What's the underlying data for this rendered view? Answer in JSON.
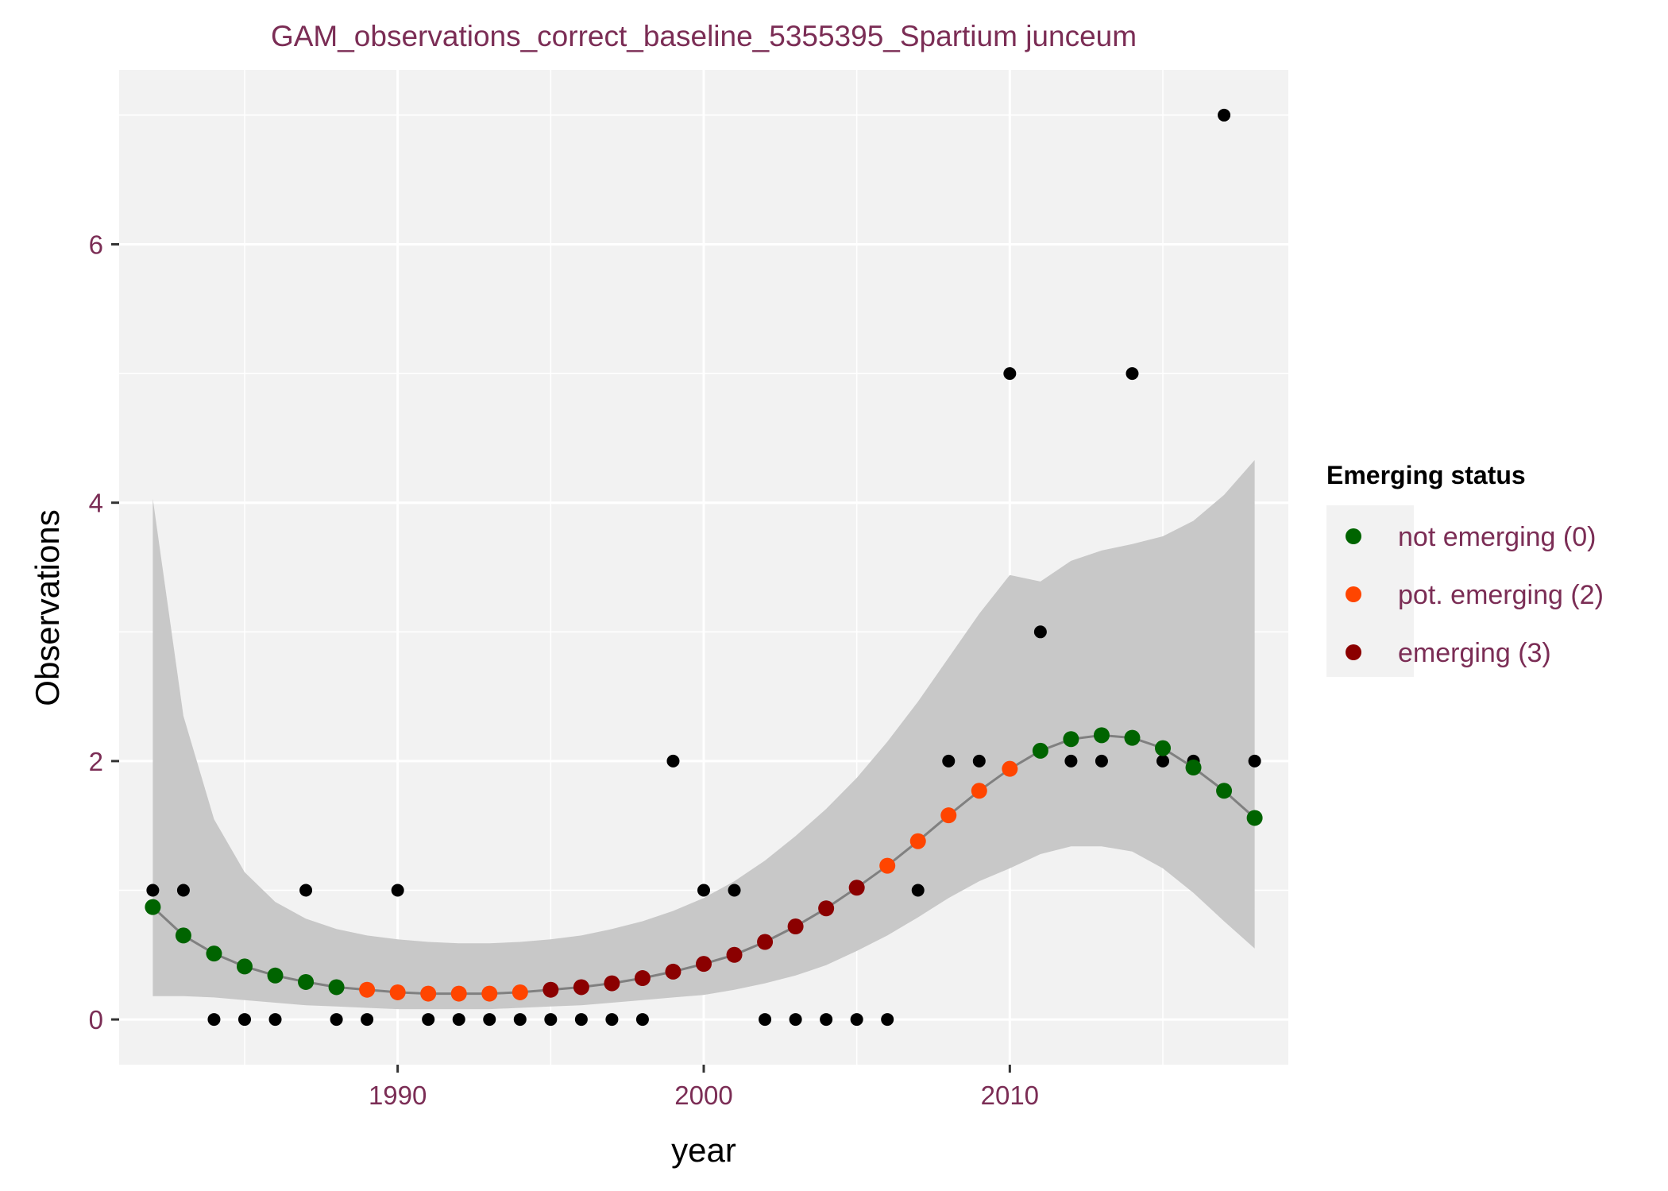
{
  "chart_data": {
    "type": "scatter",
    "title": "GAM_observations_correct_baseline_5355395_Spartium junceum",
    "xlabel": "year",
    "ylabel": "Observations",
    "xlim": [
      1980.9,
      2019.1
    ],
    "ylim": [
      -0.35,
      7.35
    ],
    "x_ticks": [
      1990,
      2000,
      2010
    ],
    "y_ticks": [
      0,
      2,
      4,
      6
    ],
    "grid": true,
    "legend": {
      "title": "Emerging status",
      "position": "right",
      "entries": [
        {
          "label": "not emerging (0)",
          "color": "#006400"
        },
        {
          "label": "pot. emerging (2)",
          "color": "#ff4500"
        },
        {
          "label": "emerging (3)",
          "color": "#8b0000"
        }
      ]
    },
    "colors": {
      "observed": "#000000",
      "ribbon": "#c8c8c8",
      "fit_line": "#808080",
      "panel": "#f2f2f2",
      "text": "#7b2d55"
    },
    "observations": [
      {
        "x": 1982,
        "y": 1
      },
      {
        "x": 1983,
        "y": 1
      },
      {
        "x": 1984,
        "y": 0
      },
      {
        "x": 1985,
        "y": 0
      },
      {
        "x": 1986,
        "y": 0
      },
      {
        "x": 1987,
        "y": 1
      },
      {
        "x": 1988,
        "y": 0
      },
      {
        "x": 1989,
        "y": 0
      },
      {
        "x": 1990,
        "y": 1
      },
      {
        "x": 1991,
        "y": 0
      },
      {
        "x": 1992,
        "y": 0
      },
      {
        "x": 1993,
        "y": 0
      },
      {
        "x": 1994,
        "y": 0
      },
      {
        "x": 1995,
        "y": 0
      },
      {
        "x": 1996,
        "y": 0
      },
      {
        "x": 1997,
        "y": 0
      },
      {
        "x": 1998,
        "y": 0
      },
      {
        "x": 1999,
        "y": 2
      },
      {
        "x": 2000,
        "y": 1
      },
      {
        "x": 2001,
        "y": 1
      },
      {
        "x": 2002,
        "y": 0
      },
      {
        "x": 2003,
        "y": 0
      },
      {
        "x": 2004,
        "y": 0
      },
      {
        "x": 2005,
        "y": 0
      },
      {
        "x": 2006,
        "y": 0
      },
      {
        "x": 2007,
        "y": 1
      },
      {
        "x": 2008,
        "y": 2
      },
      {
        "x": 2009,
        "y": 2
      },
      {
        "x": 2010,
        "y": 5
      },
      {
        "x": 2011,
        "y": 3
      },
      {
        "x": 2012,
        "y": 2
      },
      {
        "x": 2013,
        "y": 2
      },
      {
        "x": 2014,
        "y": 5
      },
      {
        "x": 2015,
        "y": 2
      },
      {
        "x": 2016,
        "y": 2
      },
      {
        "x": 2017,
        "y": 7
      },
      {
        "x": 2018,
        "y": 2
      }
    ],
    "fitted": [
      {
        "x": 1982,
        "y": 0.87,
        "lower": 0.18,
        "upper": 4.03,
        "status": 0
      },
      {
        "x": 1983,
        "y": 0.65,
        "lower": 0.18,
        "upper": 2.35,
        "status": 0
      },
      {
        "x": 1984,
        "y": 0.51,
        "lower": 0.17,
        "upper": 1.55,
        "status": 0
      },
      {
        "x": 1985,
        "y": 0.41,
        "lower": 0.15,
        "upper": 1.14,
        "status": 0
      },
      {
        "x": 1986,
        "y": 0.34,
        "lower": 0.13,
        "upper": 0.91,
        "status": 0
      },
      {
        "x": 1987,
        "y": 0.29,
        "lower": 0.11,
        "upper": 0.78,
        "status": 0
      },
      {
        "x": 1988,
        "y": 0.25,
        "lower": 0.1,
        "upper": 0.7,
        "status": 0
      },
      {
        "x": 1989,
        "y": 0.23,
        "lower": 0.09,
        "upper": 0.65,
        "status": 2
      },
      {
        "x": 1990,
        "y": 0.21,
        "lower": 0.08,
        "upper": 0.62,
        "status": 2
      },
      {
        "x": 1991,
        "y": 0.2,
        "lower": 0.08,
        "upper": 0.6,
        "status": 2
      },
      {
        "x": 1992,
        "y": 0.2,
        "lower": 0.08,
        "upper": 0.59,
        "status": 2
      },
      {
        "x": 1993,
        "y": 0.2,
        "lower": 0.08,
        "upper": 0.59,
        "status": 2
      },
      {
        "x": 1994,
        "y": 0.21,
        "lower": 0.09,
        "upper": 0.6,
        "status": 2
      },
      {
        "x": 1995,
        "y": 0.23,
        "lower": 0.1,
        "upper": 0.62,
        "status": 3
      },
      {
        "x": 1996,
        "y": 0.25,
        "lower": 0.11,
        "upper": 0.65,
        "status": 3
      },
      {
        "x": 1997,
        "y": 0.28,
        "lower": 0.13,
        "upper": 0.7,
        "status": 3
      },
      {
        "x": 1998,
        "y": 0.32,
        "lower": 0.15,
        "upper": 0.76,
        "status": 3
      },
      {
        "x": 1999,
        "y": 0.37,
        "lower": 0.17,
        "upper": 0.84,
        "status": 3
      },
      {
        "x": 2000,
        "y": 0.43,
        "lower": 0.19,
        "upper": 0.94,
        "status": 3
      },
      {
        "x": 2001,
        "y": 0.5,
        "lower": 0.23,
        "upper": 1.07,
        "status": 3
      },
      {
        "x": 2002,
        "y": 0.6,
        "lower": 0.28,
        "upper": 1.23,
        "status": 3
      },
      {
        "x": 2003,
        "y": 0.72,
        "lower": 0.34,
        "upper": 1.42,
        "status": 3
      },
      {
        "x": 2004,
        "y": 0.86,
        "lower": 0.42,
        "upper": 1.63,
        "status": 3
      },
      {
        "x": 2005,
        "y": 1.02,
        "lower": 0.53,
        "upper": 1.87,
        "status": 3
      },
      {
        "x": 2006,
        "y": 1.19,
        "lower": 0.65,
        "upper": 2.15,
        "status": 2
      },
      {
        "x": 2007,
        "y": 1.38,
        "lower": 0.79,
        "upper": 2.46,
        "status": 2
      },
      {
        "x": 2008,
        "y": 1.58,
        "lower": 0.94,
        "upper": 2.8,
        "status": 2
      },
      {
        "x": 2009,
        "y": 1.77,
        "lower": 1.07,
        "upper": 3.14,
        "status": 2
      },
      {
        "x": 2010,
        "y": 1.94,
        "lower": 1.17,
        "upper": 3.44,
        "status": 2
      },
      {
        "x": 2011,
        "y": 2.08,
        "lower": 1.28,
        "upper": 3.39,
        "status": 0
      },
      {
        "x": 2012,
        "y": 2.17,
        "lower": 1.34,
        "upper": 3.55,
        "status": 0
      },
      {
        "x": 2013,
        "y": 2.2,
        "lower": 1.34,
        "upper": 3.63,
        "status": 0
      },
      {
        "x": 2014,
        "y": 2.18,
        "lower": 1.3,
        "upper": 3.68,
        "status": 0
      },
      {
        "x": 2015,
        "y": 2.1,
        "lower": 1.17,
        "upper": 3.74,
        "status": 0
      },
      {
        "x": 2016,
        "y": 1.95,
        "lower": 0.98,
        "upper": 3.86,
        "status": 0
      },
      {
        "x": 2017,
        "y": 1.77,
        "lower": 0.76,
        "upper": 4.06,
        "status": 0
      },
      {
        "x": 2018,
        "y": 1.56,
        "lower": 0.55,
        "upper": 4.33,
        "status": 0
      }
    ]
  }
}
